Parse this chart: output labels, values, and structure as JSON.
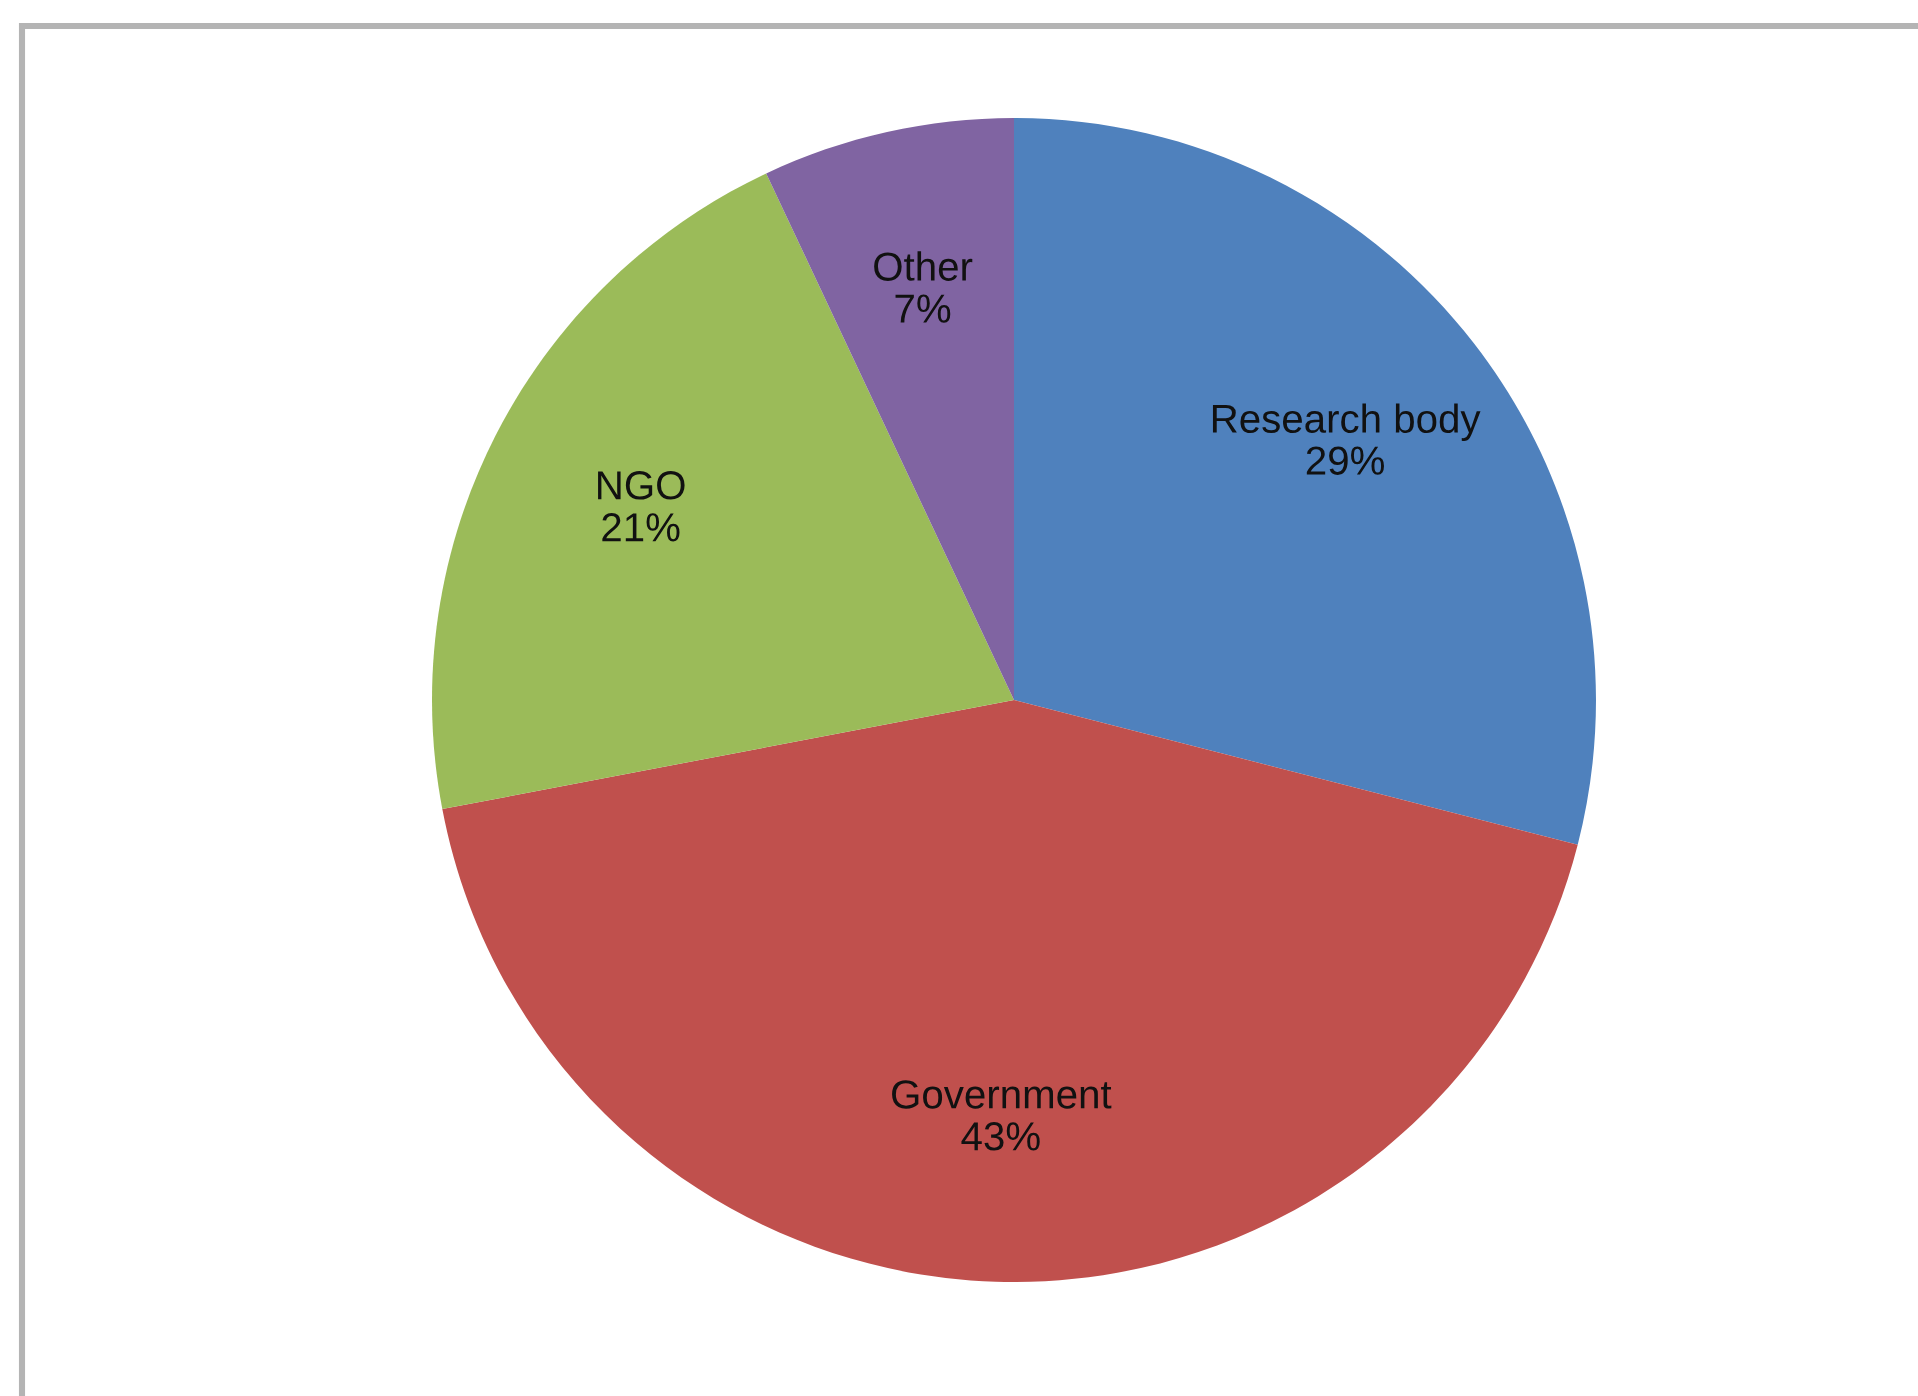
{
  "chart_data": {
    "type": "pie",
    "categories": [
      "Research body",
      "Government",
      "NGO",
      "Other"
    ],
    "values": [
      29,
      43,
      21,
      7
    ],
    "value_labels": [
      "29%",
      "43%",
      "21%",
      "7%"
    ],
    "colors": [
      "#4f81bd",
      "#c0504d",
      "#9bbb59",
      "#8064a2"
    ],
    "legend": false
  }
}
